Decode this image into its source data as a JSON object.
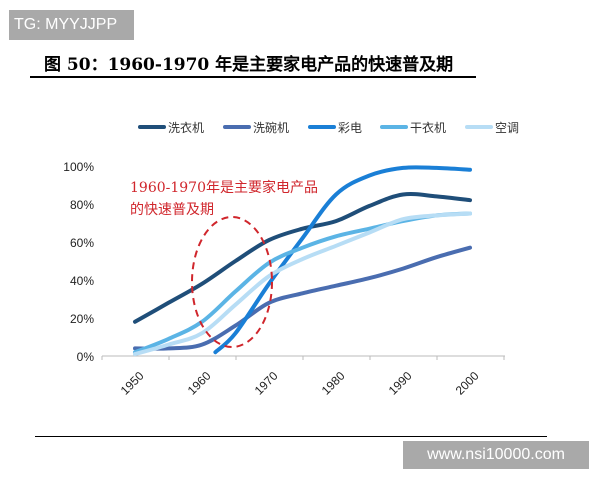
{
  "watermark_top": "TG: MYYJJPP",
  "watermark_bottom": "www.nsi10000.com",
  "figure_title": "图 50：1960-1970 年是主要家电产品的快速普及期",
  "chart_data": {
    "type": "line",
    "title": "图 50：1960-1970 年是主要家电产品的快速普及期",
    "xlabel": "",
    "ylabel": "",
    "x_ticks": [
      "1950",
      "1960",
      "1970",
      "1980",
      "1990",
      "2000"
    ],
    "y_ticks": [
      "0%",
      "20%",
      "40%",
      "60%",
      "80%",
      "100%"
    ],
    "xlim": [
      1950,
      2000
    ],
    "ylim": [
      0,
      100
    ],
    "legend_position": "top",
    "annotation": {
      "text_line1": "1960-1970年是主要家电产品",
      "text_line2": "的快速普及期",
      "color": "#D0262C"
    },
    "series": [
      {
        "name": "洗衣机",
        "color": "#1F4E79",
        "x": [
          1950,
          1955,
          1960,
          1965,
          1970,
          1975,
          1980,
          1985,
          1990,
          1995,
          2000
        ],
        "values": [
          18,
          28,
          38,
          50,
          61,
          67,
          71,
          79,
          85,
          84,
          82
        ]
      },
      {
        "name": "洗碗机",
        "color": "#4A6DB0",
        "x": [
          1950,
          1955,
          1960,
          1965,
          1970,
          1975,
          1980,
          1985,
          1990,
          1995,
          2000
        ],
        "values": [
          4,
          4,
          6,
          16,
          28,
          33,
          37,
          41,
          46,
          52,
          57
        ]
      },
      {
        "name": "彩电",
        "color": "#1A7FD6",
        "x": [
          1962,
          1965,
          1970,
          1975,
          1980,
          1985,
          1990,
          1995,
          2000
        ],
        "values": [
          2,
          12,
          38,
          62,
          85,
          95,
          99,
          99,
          98
        ]
      },
      {
        "name": "干衣机",
        "color": "#5BB4E5",
        "x": [
          1950,
          1955,
          1960,
          1965,
          1970,
          1975,
          1980,
          1985,
          1990,
          1995,
          2000
        ],
        "values": [
          2,
          9,
          18,
          34,
          49,
          57,
          63,
          67,
          71,
          74,
          75
        ]
      },
      {
        "name": "空调",
        "color": "#B7DDF5",
        "x": [
          1950,
          1955,
          1960,
          1965,
          1970,
          1975,
          1980,
          1985,
          1990,
          1995,
          2000
        ],
        "values": [
          1,
          6,
          12,
          27,
          42,
          51,
          58,
          65,
          72,
          74,
          75
        ]
      }
    ]
  }
}
